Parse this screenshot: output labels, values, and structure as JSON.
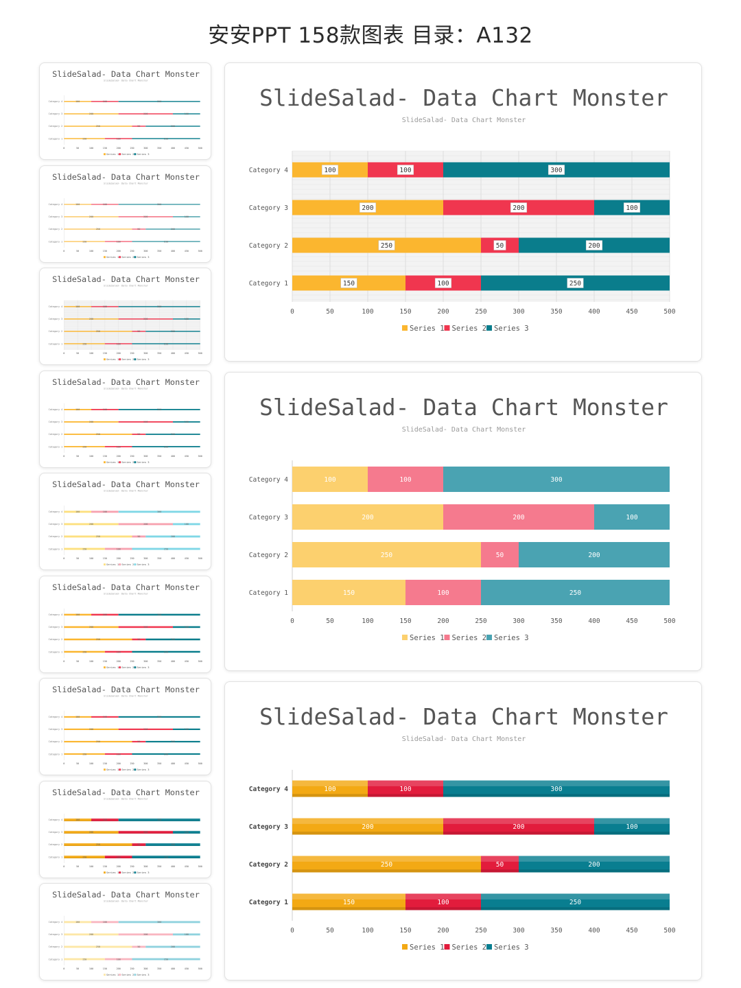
{
  "page": {
    "title": "安安PPT 158款图表 目录：A132"
  },
  "slide": {
    "title": "SlideSalad- Data Chart Monster",
    "subtitle": "SlideSalad- Data Chart Monster"
  },
  "colors": {
    "vivid": [
      "#fbb62f",
      "#f0364f",
      "#0a7d8c"
    ],
    "light": [
      "#fcd06e",
      "#f57a8e",
      "#4aa3b2"
    ],
    "glossy": [
      "#f3a914",
      "#e21c3c",
      "#097e90"
    ],
    "pastel": [
      "#fde7a6",
      "#f9b6c0",
      "#8fd2de"
    ],
    "cyan": [
      "#fde07f",
      "#f7a2b0",
      "#7fd7e6"
    ]
  },
  "chart_data": [
    {
      "id": "big-1",
      "type": "bar",
      "orientation": "horizontal",
      "stacked": true,
      "title": "SlideSalad- Data Chart Monster",
      "categories": [
        "Category 1",
        "Category 2",
        "Category 3",
        "Category 4"
      ],
      "series": [
        {
          "name": "Series 1",
          "values": [
            150,
            250,
            200,
            100
          ]
        },
        {
          "name": "Series 2",
          "values": [
            100,
            50,
            200,
            100
          ]
        },
        {
          "name": "Series 3",
          "values": [
            250,
            200,
            100,
            300
          ]
        }
      ],
      "xlim": [
        0,
        500
      ],
      "ticks": [
        "0",
        "50",
        "100",
        "150",
        "200",
        "250",
        "300",
        "350",
        "400",
        "450",
        "500"
      ],
      "legend": "bottom",
      "grid": true
    },
    {
      "id": "big-2",
      "type": "bar",
      "orientation": "horizontal",
      "stacked": true,
      "title": "SlideSalad- Data Chart Monster",
      "categories": [
        "Category 1",
        "Category 2",
        "Category 3",
        "Category 4"
      ],
      "series": [
        {
          "name": "Series 1",
          "values": [
            150,
            250,
            200,
            100
          ]
        },
        {
          "name": "Series 2",
          "values": [
            100,
            50,
            200,
            100
          ]
        },
        {
          "name": "Series 3",
          "values": [
            250,
            200,
            100,
            300
          ]
        }
      ],
      "xlim": [
        0,
        500
      ],
      "ticks": [
        "0",
        "50",
        "100",
        "150",
        "200",
        "250",
        "300",
        "350",
        "400",
        "450",
        "500"
      ],
      "legend": "bottom",
      "grid": false
    },
    {
      "id": "big-3",
      "type": "bar",
      "orientation": "horizontal",
      "stacked": true,
      "title": "SlideSalad- Data Chart Monster",
      "categories": [
        "Category 1",
        "Category 2",
        "Category 3",
        "Category 4"
      ],
      "series": [
        {
          "name": "Series 1",
          "values": [
            150,
            250,
            200,
            100
          ]
        },
        {
          "name": "Series 2",
          "values": [
            100,
            50,
            200,
            100
          ]
        },
        {
          "name": "Series 3",
          "values": [
            250,
            200,
            100,
            300
          ]
        }
      ],
      "xlim": [
        0,
        500
      ],
      "ticks": [
        "0",
        "50",
        "100",
        "150",
        "200",
        "250",
        "300",
        "350",
        "400",
        "450",
        "500"
      ],
      "legend": "bottom",
      "grid": false
    }
  ],
  "thumbnails": [
    {
      "title": "SlideSalad- Data Chart Monster",
      "subtitle": "SlideSalad- Data Chart Monster"
    },
    {
      "title": "SlideSalad- Data Chart Monster",
      "subtitle": "SlideSalad- Data Chart Monster"
    },
    {
      "title": "SlideSalad- Data Chart Monster",
      "subtitle": "SlideSalad- Data Chart Monster"
    },
    {
      "title": "SlideSalad- Data Chart Monster",
      "subtitle": "SlideSalad- Data Chart Monster"
    },
    {
      "title": "SlideSalad- Data Chart Monster",
      "subtitle": "SlideSalad- Data Chart Monster"
    },
    {
      "title": "SlideSalad- Data Chart Monster",
      "subtitle": "SlideSalad- Data Chart Monster"
    },
    {
      "title": "SlideSalad- Data Chart Monster",
      "subtitle": "SlideSalad- Data Chart Monster"
    },
    {
      "title": "SlideSalad- Data Chart Monster",
      "subtitle": "SlideSalad- Data Chart Monster"
    },
    {
      "title": "SlideSalad- Data Chart Monster",
      "subtitle": "SlideSalad- Data Chart Monster"
    }
  ]
}
